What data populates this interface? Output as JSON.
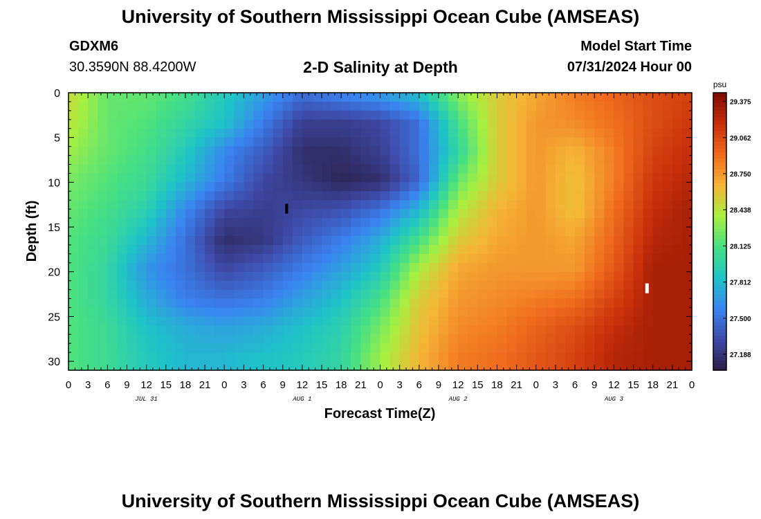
{
  "header": {
    "title": "University of Southern Mississippi Ocean Cube (AMSEAS)",
    "station": "GDXM6",
    "coordinates": "30.3590N  88.4200W",
    "subtitle": "2-D Salinity at Depth",
    "start_label": "Model Start Time",
    "start_value": "07/31/2024 Hour 00"
  },
  "footer": {
    "title": "University of Southern Mississippi Ocean Cube (AMSEAS)"
  },
  "chart_data": {
    "type": "heatmap",
    "xlabel": "Forecast Time(Z)",
    "ylabel": "Depth (ft)",
    "x_hours_range": [
      0,
      96
    ],
    "x_tick_labels": [
      "0",
      "3",
      "6",
      "9",
      "12",
      "15",
      "18",
      "21",
      "0",
      "3",
      "6",
      "9",
      "12",
      "15",
      "18",
      "21",
      "0",
      "3",
      "6",
      "9",
      "12",
      "15",
      "18",
      "21",
      "0",
      "3",
      "6",
      "9",
      "12",
      "15",
      "18",
      "21",
      "0"
    ],
    "date_labels": [
      {
        "label": "JUL 31",
        "hour": 12
      },
      {
        "label": "AUG 1",
        "hour": 36
      },
      {
        "label": "AUG 2",
        "hour": 60
      },
      {
        "label": "AUG 3",
        "hour": 84
      }
    ],
    "y_range": [
      0,
      31
    ],
    "y_ticks": [
      0,
      5,
      10,
      15,
      20,
      25,
      30
    ],
    "colorbar": {
      "unit": "psu",
      "min": 27.05,
      "max": 29.45,
      "tick_values": [
        27.188,
        27.5,
        27.812,
        28.125,
        28.438,
        28.75,
        29.062,
        29.375
      ],
      "tick_labels": [
        "27.188",
        "27.500",
        "27.812",
        "28.125",
        "28.438",
        "28.750",
        "29.062",
        "29.375"
      ],
      "colors": [
        "#2b1e45",
        "#3e4aa8",
        "#3a84f0",
        "#1fc3c8",
        "#46e084",
        "#a8f040",
        "#f5b535",
        "#f06a1e",
        "#c8300a",
        "#7f0a05"
      ]
    },
    "missing_color": "#ffffff",
    "depth_levels_ft": [
      0,
      3.3,
      6.6,
      9.8,
      13.1,
      16.4,
      19.7,
      23.0,
      26.2,
      29.5
    ],
    "hours": [
      0,
      6,
      12,
      18,
      24,
      30,
      36,
      42,
      48,
      54,
      60,
      66,
      72,
      78,
      84,
      90,
      96
    ],
    "salinity_psu": [
      [
        28.5,
        28.2,
        28.2,
        28.1,
        27.9,
        27.7,
        27.5,
        27.6,
        27.7,
        27.85,
        28.3,
        28.55,
        28.7,
        28.85,
        28.95,
        29.05,
        29.1
      ],
      [
        28.45,
        28.2,
        28.15,
        28.0,
        27.85,
        27.55,
        27.25,
        27.25,
        27.3,
        27.5,
        28.1,
        28.55,
        28.75,
        28.8,
        28.9,
        29.05,
        29.15
      ],
      [
        28.35,
        28.2,
        28.1,
        27.9,
        27.6,
        27.4,
        27.15,
        27.15,
        27.25,
        27.5,
        28.0,
        28.55,
        28.75,
        28.65,
        28.85,
        29.1,
        29.2
      ],
      [
        28.25,
        28.15,
        28.05,
        27.8,
        27.55,
        27.3,
        27.2,
        27.1,
        27.15,
        27.45,
        28.2,
        28.55,
        28.75,
        28.6,
        28.85,
        29.15,
        29.25
      ],
      [
        28.2,
        28.1,
        27.95,
        27.6,
        27.3,
        27.25,
        27.3,
        27.35,
        27.5,
        27.8,
        28.4,
        28.65,
        28.75,
        28.6,
        28.9,
        29.2,
        29.3
      ],
      [
        28.15,
        28.05,
        27.8,
        27.5,
        27.15,
        27.2,
        27.4,
        27.55,
        27.75,
        28.1,
        28.55,
        28.7,
        28.75,
        28.7,
        28.95,
        29.25,
        29.3
      ],
      [
        28.15,
        28.0,
        27.65,
        27.5,
        27.3,
        27.4,
        27.55,
        27.7,
        27.9,
        28.4,
        28.7,
        28.75,
        28.75,
        28.75,
        29.0,
        29.3,
        29.3
      ],
      [
        28.15,
        28.0,
        27.75,
        27.55,
        27.5,
        27.55,
        27.7,
        27.85,
        28.1,
        28.55,
        28.75,
        28.8,
        28.85,
        28.9,
        29.1,
        29.3,
        29.3
      ],
      [
        28.15,
        28.05,
        27.85,
        27.75,
        27.7,
        27.75,
        27.85,
        27.95,
        28.25,
        28.6,
        28.8,
        28.85,
        28.95,
        29.05,
        29.2,
        29.3,
        29.3
      ],
      [
        28.15,
        28.05,
        27.9,
        27.8,
        27.8,
        27.85,
        27.9,
        28.0,
        28.35,
        28.65,
        28.85,
        28.9,
        29.0,
        29.1,
        29.25,
        29.3,
        29.3
      ]
    ]
  }
}
